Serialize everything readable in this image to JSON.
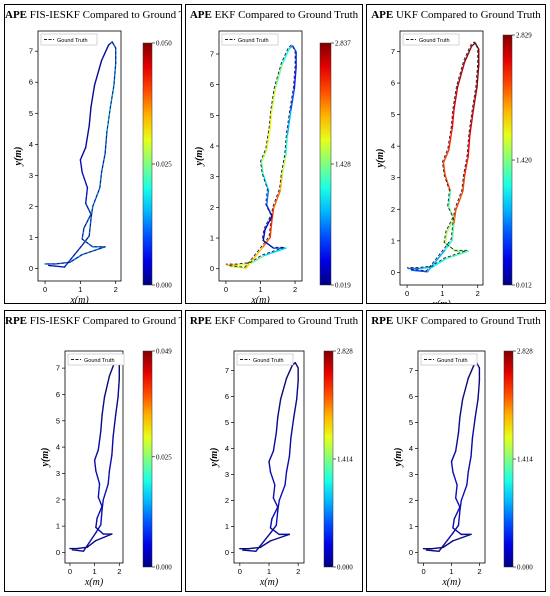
{
  "figure": {
    "legend_label": "Gound Truth",
    "xlabel": "x(m)",
    "ylabel": "y(m)"
  },
  "ground_truth_path": [
    [
      0.1,
      0.1
    ],
    [
      0.55,
      0.05
    ],
    [
      1.05,
      0.75
    ],
    [
      1.25,
      1.05
    ],
    [
      1.3,
      1.6
    ],
    [
      1.35,
      2.0
    ],
    [
      1.55,
      2.6
    ],
    [
      1.6,
      3.1
    ],
    [
      1.7,
      3.7
    ],
    [
      1.75,
      4.4
    ],
    [
      1.85,
      5.2
    ],
    [
      1.95,
      5.9
    ],
    [
      2.0,
      6.6
    ],
    [
      2.0,
      7.1
    ],
    [
      1.9,
      7.3
    ],
    [
      1.8,
      7.2
    ],
    [
      1.6,
      6.7
    ],
    [
      1.4,
      5.9
    ],
    [
      1.3,
      5.2
    ],
    [
      1.25,
      4.6
    ],
    [
      1.15,
      3.9
    ],
    [
      1.0,
      3.5
    ],
    [
      1.05,
      3.1
    ],
    [
      1.2,
      2.6
    ],
    [
      1.15,
      2.1
    ],
    [
      1.3,
      1.75
    ],
    [
      1.1,
      1.3
    ],
    [
      1.05,
      0.95
    ],
    [
      1.35,
      0.7
    ],
    [
      1.7,
      0.7
    ],
    [
      1.05,
      0.45
    ],
    [
      0.7,
      0.2
    ],
    [
      0.3,
      0.15
    ],
    [
      0.0,
      0.15
    ]
  ],
  "chart_data": [
    {
      "type": "line",
      "metric": "APE",
      "title_bold": "APE",
      "title_rest": "FIS-IESKF Compared to Ground Truth",
      "xlabel": "x(m)",
      "ylabel": "y(m)",
      "x_ticks": [
        0,
        1,
        2
      ],
      "y_ticks": [
        0,
        1,
        2,
        3,
        4,
        5,
        6,
        7
      ],
      "xlim": [
        -0.2,
        2.15
      ],
      "ylim": [
        -0.4,
        7.65
      ],
      "legend": "top-left",
      "colorbar_ticks": [
        "0.000",
        "0.025",
        "0.050"
      ],
      "colorbar_min": 0.0,
      "colorbar_max": 0.05,
      "error_profile": "low"
    },
    {
      "type": "line",
      "metric": "APE",
      "title_bold": "APE",
      "title_rest": "EKF Compared to Ground Truth",
      "xlabel": "x(m)",
      "ylabel": "y(m)",
      "x_ticks": [
        0,
        1,
        2
      ],
      "y_ticks": [
        0,
        1,
        2,
        3,
        4,
        5,
        6,
        7
      ],
      "xlim": [
        -0.2,
        2.2
      ],
      "ylim": [
        -0.4,
        7.75
      ],
      "legend": "top-left",
      "colorbar_ticks": [
        "0.019",
        "1.428",
        "2.837"
      ],
      "colorbar_min": 0.019,
      "colorbar_max": 2.837,
      "error_profile": "mixed"
    },
    {
      "type": "line",
      "metric": "APE",
      "title_bold": "APE",
      "title_rest": "UKF Compared to Ground Truth",
      "xlabel": "x(m)",
      "ylabel": "y(m)",
      "x_ticks": [
        0,
        1,
        2
      ],
      "y_ticks": [
        0,
        1,
        2,
        3,
        4,
        5,
        6,
        7
      ],
      "xlim": [
        -0.2,
        2.15
      ],
      "ylim": [
        -0.4,
        7.65
      ],
      "legend": "top-left",
      "colorbar_ticks": [
        "0.012",
        "1.420",
        "2.829"
      ],
      "colorbar_min": 0.012,
      "colorbar_max": 2.829,
      "error_profile": "high"
    },
    {
      "type": "line",
      "metric": "RPE",
      "title_bold": "RPE",
      "title_rest": "FIS-IESKF Compared to Ground Truth",
      "xlabel": "x(m)",
      "ylabel": "y(m)",
      "x_ticks": [
        0,
        1,
        2
      ],
      "y_ticks": [
        0,
        1,
        2,
        3,
        4,
        5,
        6,
        7
      ],
      "xlim": [
        -0.2,
        2.15
      ],
      "ylim": [
        -0.4,
        7.65
      ],
      "legend": "top-left",
      "colorbar_ticks": [
        "0.000",
        "0.025",
        "0.049"
      ],
      "colorbar_min": 0.0,
      "colorbar_max": 0.049,
      "error_profile": "rpe"
    },
    {
      "type": "line",
      "metric": "RPE",
      "title_bold": "RPE",
      "title_rest": "EKF Compared to Ground Truth",
      "xlabel": "x(m)",
      "ylabel": "y(m)",
      "x_ticks": [
        0,
        1,
        2
      ],
      "y_ticks": [
        0,
        1,
        2,
        3,
        4,
        5,
        6,
        7
      ],
      "xlim": [
        -0.2,
        2.2
      ],
      "ylim": [
        -0.4,
        7.75
      ],
      "legend": "top-left",
      "colorbar_ticks": [
        "0.000",
        "1.414",
        "2.828"
      ],
      "colorbar_min": 0.0,
      "colorbar_max": 2.828,
      "error_profile": "rpe"
    },
    {
      "type": "line",
      "metric": "RPE",
      "title_bold": "RPE",
      "title_rest": "UKF Compared to Ground Truth",
      "xlabel": "x(m)",
      "ylabel": "y(m)",
      "x_ticks": [
        0,
        1,
        2
      ],
      "y_ticks": [
        0,
        1,
        2,
        3,
        4,
        5,
        6,
        7
      ],
      "xlim": [
        -0.2,
        2.2
      ],
      "ylim": [
        -0.4,
        7.75
      ],
      "legend": "top-left",
      "colorbar_ticks": [
        "0.000",
        "1.414",
        "2.828"
      ],
      "colorbar_min": 0.0,
      "colorbar_max": 2.828,
      "error_profile": "rpe"
    }
  ]
}
